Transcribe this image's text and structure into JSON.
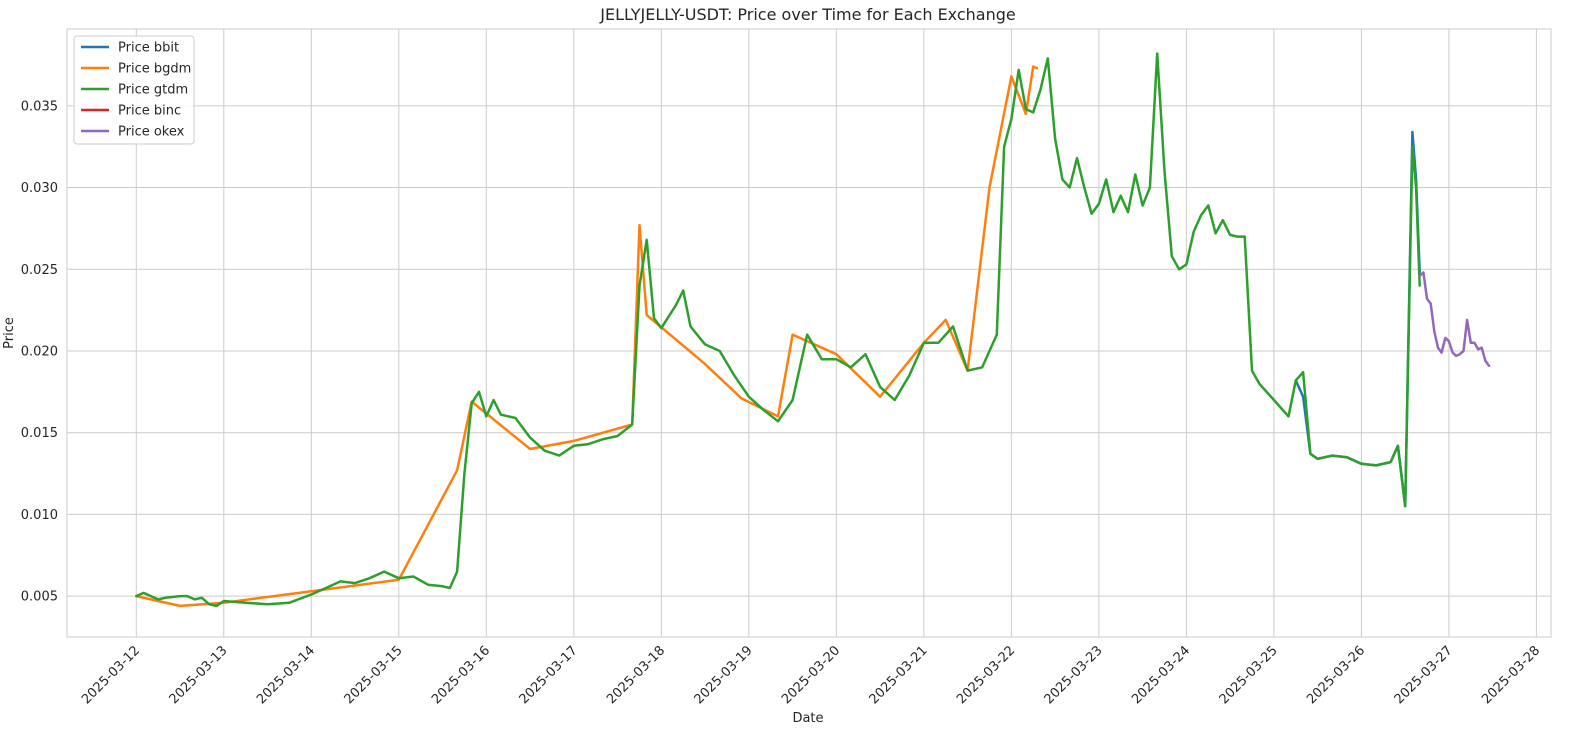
{
  "chart_data": {
    "type": "line",
    "title": "JELLYJELLY-USDT: Price over Time for Each Exchange",
    "xlabel": "Date",
    "ylabel": "Price",
    "x_tick_labels": [
      "2025-03-12",
      "2025-03-13",
      "2025-03-14",
      "2025-03-15",
      "2025-03-16",
      "2025-03-17",
      "2025-03-18",
      "2025-03-19",
      "2025-03-20",
      "2025-03-21",
      "2025-03-22",
      "2025-03-23",
      "2025-03-24",
      "2025-03-25",
      "2025-03-26",
      "2025-03-27",
      "2025-03-28"
    ],
    "y_ticks": [
      0.005,
      0.01,
      0.015,
      0.02,
      0.025,
      0.03,
      0.035
    ],
    "y_tick_labels": [
      "0.005",
      "0.010",
      "0.015",
      "0.020",
      "0.025",
      "0.030",
      "0.035"
    ],
    "xlim": [
      "2025-03-11T05:00",
      "2025-03-28T04:00"
    ],
    "ylim": [
      0.0025,
      0.0397
    ],
    "grid": true,
    "legend_position": "top-left",
    "series": [
      {
        "name": "Price bbit",
        "color": "#1f77b4",
        "points": [
          [
            "2025-03-25T06:00",
            0.0182
          ],
          [
            "2025-03-25T08:00",
            0.0172
          ],
          [
            "2025-03-25T10:00",
            0.0137
          ],
          [
            "2025-03-25T12:00",
            0.0134
          ],
          [
            "2025-03-25T16:00",
            0.0136
          ],
          [
            "2025-03-25T20:00",
            0.0135
          ],
          [
            "2025-03-26T00:00",
            0.0131
          ],
          [
            "2025-03-26T04:00",
            0.013
          ],
          [
            "2025-03-26T08:00",
            0.0132
          ],
          [
            "2025-03-26T10:00",
            0.0142
          ],
          [
            "2025-03-26T12:00",
            0.0105
          ],
          [
            "2025-03-26T14:00",
            0.0334
          ],
          [
            "2025-03-26T15:00",
            0.0305
          ],
          [
            "2025-03-26T16:00",
            0.0248
          ]
        ]
      },
      {
        "name": "Price bgdm",
        "color": "#ff7f0e",
        "points": [
          [
            "2025-03-12T00:00",
            0.005
          ],
          [
            "2025-03-12T12:00",
            0.0044
          ],
          [
            "2025-03-13T00:00",
            0.0046
          ],
          [
            "2025-03-14T00:00",
            0.0053
          ],
          [
            "2025-03-15T00:00",
            0.006
          ],
          [
            "2025-03-15T16:00",
            0.0127
          ],
          [
            "2025-03-15T20:00",
            0.0169
          ],
          [
            "2025-03-16T12:00",
            0.014
          ],
          [
            "2025-03-17T00:00",
            0.0145
          ],
          [
            "2025-03-17T16:00",
            0.0155
          ],
          [
            "2025-03-17T18:00",
            0.0277
          ],
          [
            "2025-03-17T20:00",
            0.0222
          ],
          [
            "2025-03-18T12:00",
            0.0192
          ],
          [
            "2025-03-18T22:00",
            0.0171
          ],
          [
            "2025-03-19T08:00",
            0.016
          ],
          [
            "2025-03-19T12:00",
            0.021
          ],
          [
            "2025-03-20T00:00",
            0.0198
          ],
          [
            "2025-03-20T12:00",
            0.0172
          ],
          [
            "2025-03-21T00:00",
            0.0205
          ],
          [
            "2025-03-21T06:00",
            0.0219
          ],
          [
            "2025-03-21T12:00",
            0.0188
          ],
          [
            "2025-03-21T18:00",
            0.03
          ],
          [
            "2025-03-22T00:00",
            0.0368
          ],
          [
            "2025-03-22T04:00",
            0.0345
          ],
          [
            "2025-03-22T06:00",
            0.0374
          ],
          [
            "2025-03-22T07:00",
            0.0373
          ]
        ]
      },
      {
        "name": "Price gtdm",
        "color": "#2ca02c",
        "points": [
          [
            "2025-03-12T00:00",
            0.005
          ],
          [
            "2025-03-12T02:00",
            0.0052
          ],
          [
            "2025-03-12T04:00",
            0.005
          ],
          [
            "2025-03-12T06:00",
            0.0048
          ],
          [
            "2025-03-12T08:00",
            0.0049
          ],
          [
            "2025-03-12T12:00",
            0.005
          ],
          [
            "2025-03-12T14:00",
            0.005
          ],
          [
            "2025-03-12T16:00",
            0.0048
          ],
          [
            "2025-03-12T18:00",
            0.0049
          ],
          [
            "2025-03-12T20:00",
            0.0045
          ],
          [
            "2025-03-12T22:00",
            0.0044
          ],
          [
            "2025-03-13T00:00",
            0.0047
          ],
          [
            "2025-03-13T06:00",
            0.0046
          ],
          [
            "2025-03-13T12:00",
            0.0045
          ],
          [
            "2025-03-13T18:00",
            0.0046
          ],
          [
            "2025-03-14T00:00",
            0.0051
          ],
          [
            "2025-03-14T04:00",
            0.0055
          ],
          [
            "2025-03-14T08:00",
            0.0059
          ],
          [
            "2025-03-14T12:00",
            0.0058
          ],
          [
            "2025-03-14T16:00",
            0.0061
          ],
          [
            "2025-03-14T20:00",
            0.0065
          ],
          [
            "2025-03-15T00:00",
            0.0061
          ],
          [
            "2025-03-15T04:00",
            0.0062
          ],
          [
            "2025-03-15T08:00",
            0.0057
          ],
          [
            "2025-03-15T12:00",
            0.0056
          ],
          [
            "2025-03-15T14:00",
            0.0055
          ],
          [
            "2025-03-15T16:00",
            0.0065
          ],
          [
            "2025-03-15T18:00",
            0.0125
          ],
          [
            "2025-03-15T20:00",
            0.0168
          ],
          [
            "2025-03-15T22:00",
            0.0175
          ],
          [
            "2025-03-16T00:00",
            0.016
          ],
          [
            "2025-03-16T02:00",
            0.017
          ],
          [
            "2025-03-16T04:00",
            0.0161
          ],
          [
            "2025-03-16T08:00",
            0.0159
          ],
          [
            "2025-03-16T12:00",
            0.0147
          ],
          [
            "2025-03-16T16:00",
            0.0139
          ],
          [
            "2025-03-16T20:00",
            0.0136
          ],
          [
            "2025-03-17T00:00",
            0.0142
          ],
          [
            "2025-03-17T04:00",
            0.0143
          ],
          [
            "2025-03-17T08:00",
            0.0146
          ],
          [
            "2025-03-17T12:00",
            0.0148
          ],
          [
            "2025-03-17T16:00",
            0.0155
          ],
          [
            "2025-03-17T18:00",
            0.024
          ],
          [
            "2025-03-17T20:00",
            0.0268
          ],
          [
            "2025-03-17T22:00",
            0.022
          ],
          [
            "2025-03-18T00:00",
            0.0214
          ],
          [
            "2025-03-18T04:00",
            0.0228
          ],
          [
            "2025-03-18T06:00",
            0.0237
          ],
          [
            "2025-03-18T08:00",
            0.0215
          ],
          [
            "2025-03-18T12:00",
            0.0204
          ],
          [
            "2025-03-18T16:00",
            0.02
          ],
          [
            "2025-03-18T20:00",
            0.0185
          ],
          [
            "2025-03-19T00:00",
            0.0172
          ],
          [
            "2025-03-19T04:00",
            0.0164
          ],
          [
            "2025-03-19T08:00",
            0.0157
          ],
          [
            "2025-03-19T12:00",
            0.017
          ],
          [
            "2025-03-19T16:00",
            0.021
          ],
          [
            "2025-03-19T20:00",
            0.0195
          ],
          [
            "2025-03-20T00:00",
            0.0195
          ],
          [
            "2025-03-20T04:00",
            0.019
          ],
          [
            "2025-03-20T08:00",
            0.0198
          ],
          [
            "2025-03-20T12:00",
            0.0178
          ],
          [
            "2025-03-20T16:00",
            0.017
          ],
          [
            "2025-03-20T20:00",
            0.0185
          ],
          [
            "2025-03-21T00:00",
            0.0205
          ],
          [
            "2025-03-21T04:00",
            0.0205
          ],
          [
            "2025-03-21T08:00",
            0.0215
          ],
          [
            "2025-03-21T12:00",
            0.0188
          ],
          [
            "2025-03-21T16:00",
            0.019
          ],
          [
            "2025-03-21T20:00",
            0.021
          ],
          [
            "2025-03-21T22:00",
            0.0325
          ],
          [
            "2025-03-22T00:00",
            0.0342
          ],
          [
            "2025-03-22T02:00",
            0.0372
          ],
          [
            "2025-03-22T04:00",
            0.0348
          ],
          [
            "2025-03-22T06:00",
            0.0346
          ],
          [
            "2025-03-22T08:00",
            0.036
          ],
          [
            "2025-03-22T10:00",
            0.0379
          ],
          [
            "2025-03-22T12:00",
            0.033
          ],
          [
            "2025-03-22T14:00",
            0.0305
          ],
          [
            "2025-03-22T16:00",
            0.03
          ],
          [
            "2025-03-22T18:00",
            0.0318
          ],
          [
            "2025-03-22T20:00",
            0.03
          ],
          [
            "2025-03-22T22:00",
            0.0284
          ],
          [
            "2025-03-23T00:00",
            0.029
          ],
          [
            "2025-03-23T02:00",
            0.0305
          ],
          [
            "2025-03-23T04:00",
            0.0285
          ],
          [
            "2025-03-23T06:00",
            0.0295
          ],
          [
            "2025-03-23T08:00",
            0.0285
          ],
          [
            "2025-03-23T10:00",
            0.0308
          ],
          [
            "2025-03-23T12:00",
            0.0289
          ],
          [
            "2025-03-23T14:00",
            0.03
          ],
          [
            "2025-03-23T16:00",
            0.0382
          ],
          [
            "2025-03-23T18:00",
            0.031
          ],
          [
            "2025-03-23T20:00",
            0.0258
          ],
          [
            "2025-03-23T22:00",
            0.025
          ],
          [
            "2025-03-24T00:00",
            0.0253
          ],
          [
            "2025-03-24T02:00",
            0.0273
          ],
          [
            "2025-03-24T04:00",
            0.0283
          ],
          [
            "2025-03-24T06:00",
            0.0289
          ],
          [
            "2025-03-24T08:00",
            0.0272
          ],
          [
            "2025-03-24T10:00",
            0.028
          ],
          [
            "2025-03-24T12:00",
            0.0271
          ],
          [
            "2025-03-24T14:00",
            0.027
          ],
          [
            "2025-03-24T16:00",
            0.027
          ],
          [
            "2025-03-24T18:00",
            0.0188
          ],
          [
            "2025-03-24T20:00",
            0.018
          ],
          [
            "2025-03-25T00:00",
            0.017
          ],
          [
            "2025-03-25T04:00",
            0.016
          ],
          [
            "2025-03-25T06:00",
            0.0182
          ],
          [
            "2025-03-25T08:00",
            0.0187
          ],
          [
            "2025-03-25T10:00",
            0.0137
          ],
          [
            "2025-03-25T12:00",
            0.0134
          ],
          [
            "2025-03-25T16:00",
            0.0136
          ],
          [
            "2025-03-25T20:00",
            0.0135
          ],
          [
            "2025-03-26T00:00",
            0.0131
          ],
          [
            "2025-03-26T04:00",
            0.013
          ],
          [
            "2025-03-26T08:00",
            0.0132
          ],
          [
            "2025-03-26T10:00",
            0.0142
          ],
          [
            "2025-03-26T12:00",
            0.0105
          ],
          [
            "2025-03-26T14:00",
            0.0325
          ],
          [
            "2025-03-26T15:00",
            0.03
          ],
          [
            "2025-03-26T16:00",
            0.024
          ]
        ]
      },
      {
        "name": "Price binc",
        "color": "#d62728",
        "points": []
      },
      {
        "name": "Price okex",
        "color": "#9467bd",
        "points": [
          [
            "2025-03-26T16:00",
            0.0246
          ],
          [
            "2025-03-26T17:00",
            0.0248
          ],
          [
            "2025-03-26T18:00",
            0.0232
          ],
          [
            "2025-03-26T19:00",
            0.0229
          ],
          [
            "2025-03-26T20:00",
            0.0212
          ],
          [
            "2025-03-26T21:00",
            0.0202
          ],
          [
            "2025-03-26T22:00",
            0.0199
          ],
          [
            "2025-03-26T23:00",
            0.0208
          ],
          [
            "2025-03-27T00:00",
            0.0206
          ],
          [
            "2025-03-27T01:00",
            0.0199
          ],
          [
            "2025-03-27T02:00",
            0.0197
          ],
          [
            "2025-03-27T03:00",
            0.0198
          ],
          [
            "2025-03-27T04:00",
            0.02
          ],
          [
            "2025-03-27T05:00",
            0.0219
          ],
          [
            "2025-03-27T06:00",
            0.0205
          ],
          [
            "2025-03-27T07:00",
            0.0205
          ],
          [
            "2025-03-27T08:00",
            0.0201
          ],
          [
            "2025-03-27T09:00",
            0.0202
          ],
          [
            "2025-03-27T10:00",
            0.0194
          ],
          [
            "2025-03-27T11:00",
            0.0191
          ]
        ]
      }
    ]
  }
}
